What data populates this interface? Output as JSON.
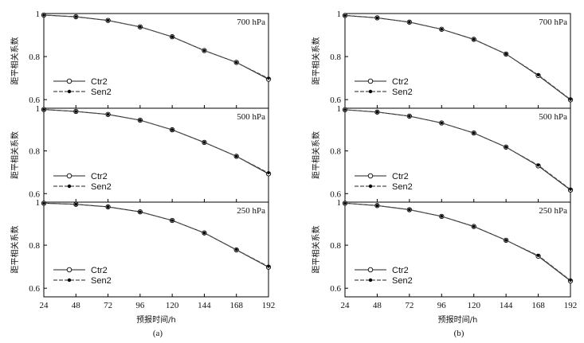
{
  "ylabel": "距平相关系数",
  "xlabel": "预报时间/h",
  "x": [
    24,
    48,
    72,
    96,
    120,
    144,
    168,
    192
  ],
  "yticks": [
    "0.6",
    "0.8",
    "1"
  ],
  "legend": [
    "Ctr2",
    "Sen2"
  ],
  "chart_data": [
    {
      "type": "line",
      "caption": "(a)",
      "panels": [
        {
          "level": "700 hPa",
          "ylim": [
            0.56,
            1.0
          ],
          "series": [
            {
              "name": "Ctr2",
              "values": [
                0.993,
                0.985,
                0.968,
                0.938,
                0.892,
                0.828,
                0.773,
                0.695
              ]
            },
            {
              "name": "Sen2",
              "values": [
                0.993,
                0.985,
                0.968,
                0.938,
                0.892,
                0.828,
                0.773,
                0.699
              ]
            }
          ]
        },
        {
          "level": "500 hPa",
          "ylim": [
            0.56,
            1.0
          ],
          "series": [
            {
              "name": "Ctr2",
              "values": [
                0.994,
                0.985,
                0.971,
                0.944,
                0.899,
                0.84,
                0.775,
                0.693
              ]
            },
            {
              "name": "Sen2",
              "values": [
                0.994,
                0.985,
                0.971,
                0.944,
                0.899,
                0.84,
                0.775,
                0.697
              ]
            }
          ]
        },
        {
          "level": "250 hPa",
          "ylim": [
            0.56,
            1.0
          ],
          "series": [
            {
              "name": "Ctr2",
              "values": [
                0.995,
                0.99,
                0.978,
                0.955,
                0.915,
                0.857,
                0.778,
                0.698
              ]
            },
            {
              "name": "Sen2",
              "values": [
                0.995,
                0.99,
                0.978,
                0.955,
                0.915,
                0.857,
                0.779,
                0.701
              ]
            }
          ]
        }
      ]
    },
    {
      "type": "line",
      "caption": "(b)",
      "panels": [
        {
          "level": "700 hPa",
          "ylim": [
            0.56,
            1.0
          ],
          "series": [
            {
              "name": "Ctr2",
              "values": [
                0.991,
                0.98,
                0.96,
                0.927,
                0.88,
                0.812,
                0.712,
                0.599
              ]
            },
            {
              "name": "Sen2",
              "values": [
                0.991,
                0.98,
                0.96,
                0.927,
                0.88,
                0.812,
                0.715,
                0.601
              ]
            }
          ]
        },
        {
          "level": "500 hPa",
          "ylim": [
            0.56,
            1.0
          ],
          "series": [
            {
              "name": "Ctr2",
              "values": [
                0.993,
                0.982,
                0.963,
                0.931,
                0.884,
                0.818,
                0.73,
                0.617
              ]
            },
            {
              "name": "Sen2",
              "values": [
                0.993,
                0.982,
                0.963,
                0.931,
                0.884,
                0.818,
                0.733,
                0.62
              ]
            }
          ]
        },
        {
          "level": "250 hPa",
          "ylim": [
            0.56,
            1.0
          ],
          "series": [
            {
              "name": "Ctr2",
              "values": [
                0.995,
                0.984,
                0.965,
                0.934,
                0.887,
                0.823,
                0.749,
                0.634
              ]
            },
            {
              "name": "Sen2",
              "values": [
                0.995,
                0.984,
                0.965,
                0.934,
                0.887,
                0.823,
                0.752,
                0.637
              ]
            }
          ]
        }
      ]
    }
  ]
}
